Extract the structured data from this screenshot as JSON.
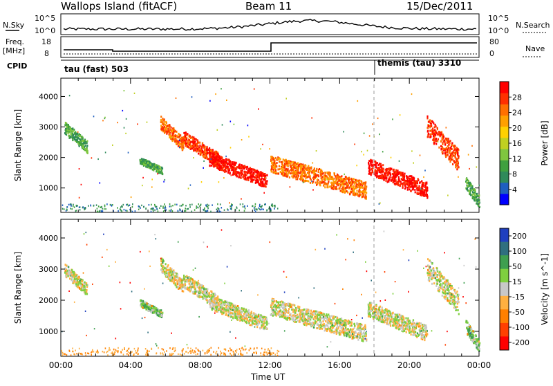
{
  "header": {
    "station": "Wallops Island (fitACF)",
    "beam": "Beam 11",
    "date": "15/Dec/2011"
  },
  "status_panels": {
    "noise_left_label": "N.Sky",
    "noise_left_top": "10^5",
    "noise_left_bottom": "10^0",
    "noise_right_top": "10^5",
    "noise_right_bottom": "10^0",
    "noise_right_label": "N.Search",
    "freq_label_1": "Freq.",
    "freq_label_2": "[MHz]",
    "freq_top": "18",
    "freq_bottom": "8",
    "nave_top": "80",
    "nave_bottom": "0",
    "nave_label": "Nave",
    "cpid_label": "CPID",
    "cpid_1": "tau (fast) 503",
    "cpid_2": "themis (tau) 3310"
  },
  "chart_data": [
    {
      "type": "heatmap",
      "name": "power",
      "ylabel": "Slant Range [km]",
      "yticks": [
        "1000",
        "2000",
        "3000",
        "4000"
      ],
      "ylim": [
        200,
        4600
      ],
      "xticks": [
        "00:00",
        "04:00",
        "08:00",
        "12:00",
        "16:00",
        "20:00",
        "00:00"
      ],
      "xlim_hours": [
        0,
        24
      ],
      "colorbar": {
        "label": "Power [dB]",
        "ticks": [
          "4",
          "8",
          "12",
          "16",
          "20",
          "24",
          "28"
        ],
        "colors": [
          "#0000ff",
          "#1f5fbf",
          "#2f8a5a",
          "#3fa03f",
          "#7fc63f",
          "#c0d020",
          "#ffd000",
          "#ffa000",
          "#ff7000",
          "#ff3000",
          "#ff0000"
        ]
      },
      "bands": [
        {
          "h0": 0.2,
          "h1": 1.5,
          "r0": 2400,
          "r1": 3200,
          "level": 3
        },
        {
          "h0": 4.5,
          "h1": 5.8,
          "r0": 1600,
          "r1": 2050,
          "level": 3
        },
        {
          "h0": 5.7,
          "h1": 7.0,
          "r0": 2500,
          "r1": 3400,
          "level": 8
        },
        {
          "h0": 7.0,
          "h1": 9.0,
          "r0": 2000,
          "r1": 2900,
          "level": 9
        },
        {
          "h0": 8.5,
          "h1": 11.8,
          "r0": 1300,
          "r1": 2200,
          "level": 10
        },
        {
          "h0": 12.0,
          "h1": 17.5,
          "r0": 1000,
          "r1": 2100,
          "level": 8
        },
        {
          "h0": 17.6,
          "h1": 21.0,
          "r0": 1000,
          "r1": 2000,
          "level": 10
        },
        {
          "h0": 21.0,
          "h1": 22.8,
          "r0": 2000,
          "r1": 3400,
          "level": 9
        },
        {
          "h0": 23.2,
          "h1": 24.0,
          "r0": 600,
          "r1": 1400,
          "level": 3
        }
      ]
    },
    {
      "type": "heatmap",
      "name": "velocity",
      "ylabel": "Slant Range [km]",
      "yticks": [
        "1000",
        "2000",
        "3000",
        "4000"
      ],
      "ylim": [
        200,
        4600
      ],
      "xticks": [
        "00:00",
        "04:00",
        "08:00",
        "12:00",
        "16:00",
        "20:00",
        "00:00"
      ],
      "xlabel": "Time UT",
      "xlim_hours": [
        0,
        24
      ],
      "colorbar": {
        "label": "Velocity [m s^-1]",
        "ticks": [
          "200",
          "100",
          "50",
          "15",
          "-15",
          "-50",
          "-100",
          "-200"
        ],
        "colors": [
          "#1f3fbf",
          "#2f6f7f",
          "#3f9f4f",
          "#7fcf3f",
          "#c8c8c8",
          "#ffb040",
          "#ff8000",
          "#ff4000",
          "#ff0000"
        ]
      },
      "bands": [
        {
          "h0": 0.2,
          "h1": 1.5,
          "r0": 2400,
          "r1": 3200,
          "level": 4
        },
        {
          "h0": 4.5,
          "h1": 5.8,
          "r0": 1600,
          "r1": 2050,
          "level": 3
        },
        {
          "h0": 5.7,
          "h1": 7.0,
          "r0": 2500,
          "r1": 3400,
          "level": 4
        },
        {
          "h0": 7.0,
          "h1": 9.0,
          "r0": 2000,
          "r1": 2900,
          "level": 4
        },
        {
          "h0": 8.5,
          "h1": 11.8,
          "r0": 1300,
          "r1": 2200,
          "level": 4
        },
        {
          "h0": 12.0,
          "h1": 17.5,
          "r0": 1000,
          "r1": 2100,
          "level": 4
        },
        {
          "h0": 17.6,
          "h1": 21.0,
          "r0": 1000,
          "r1": 2000,
          "level": 4
        },
        {
          "h0": 21.0,
          "h1": 22.8,
          "r0": 2000,
          "r1": 3400,
          "level": 4
        },
        {
          "h0": 23.2,
          "h1": 24.0,
          "r0": 600,
          "r1": 1400,
          "level": 3
        }
      ]
    }
  ]
}
